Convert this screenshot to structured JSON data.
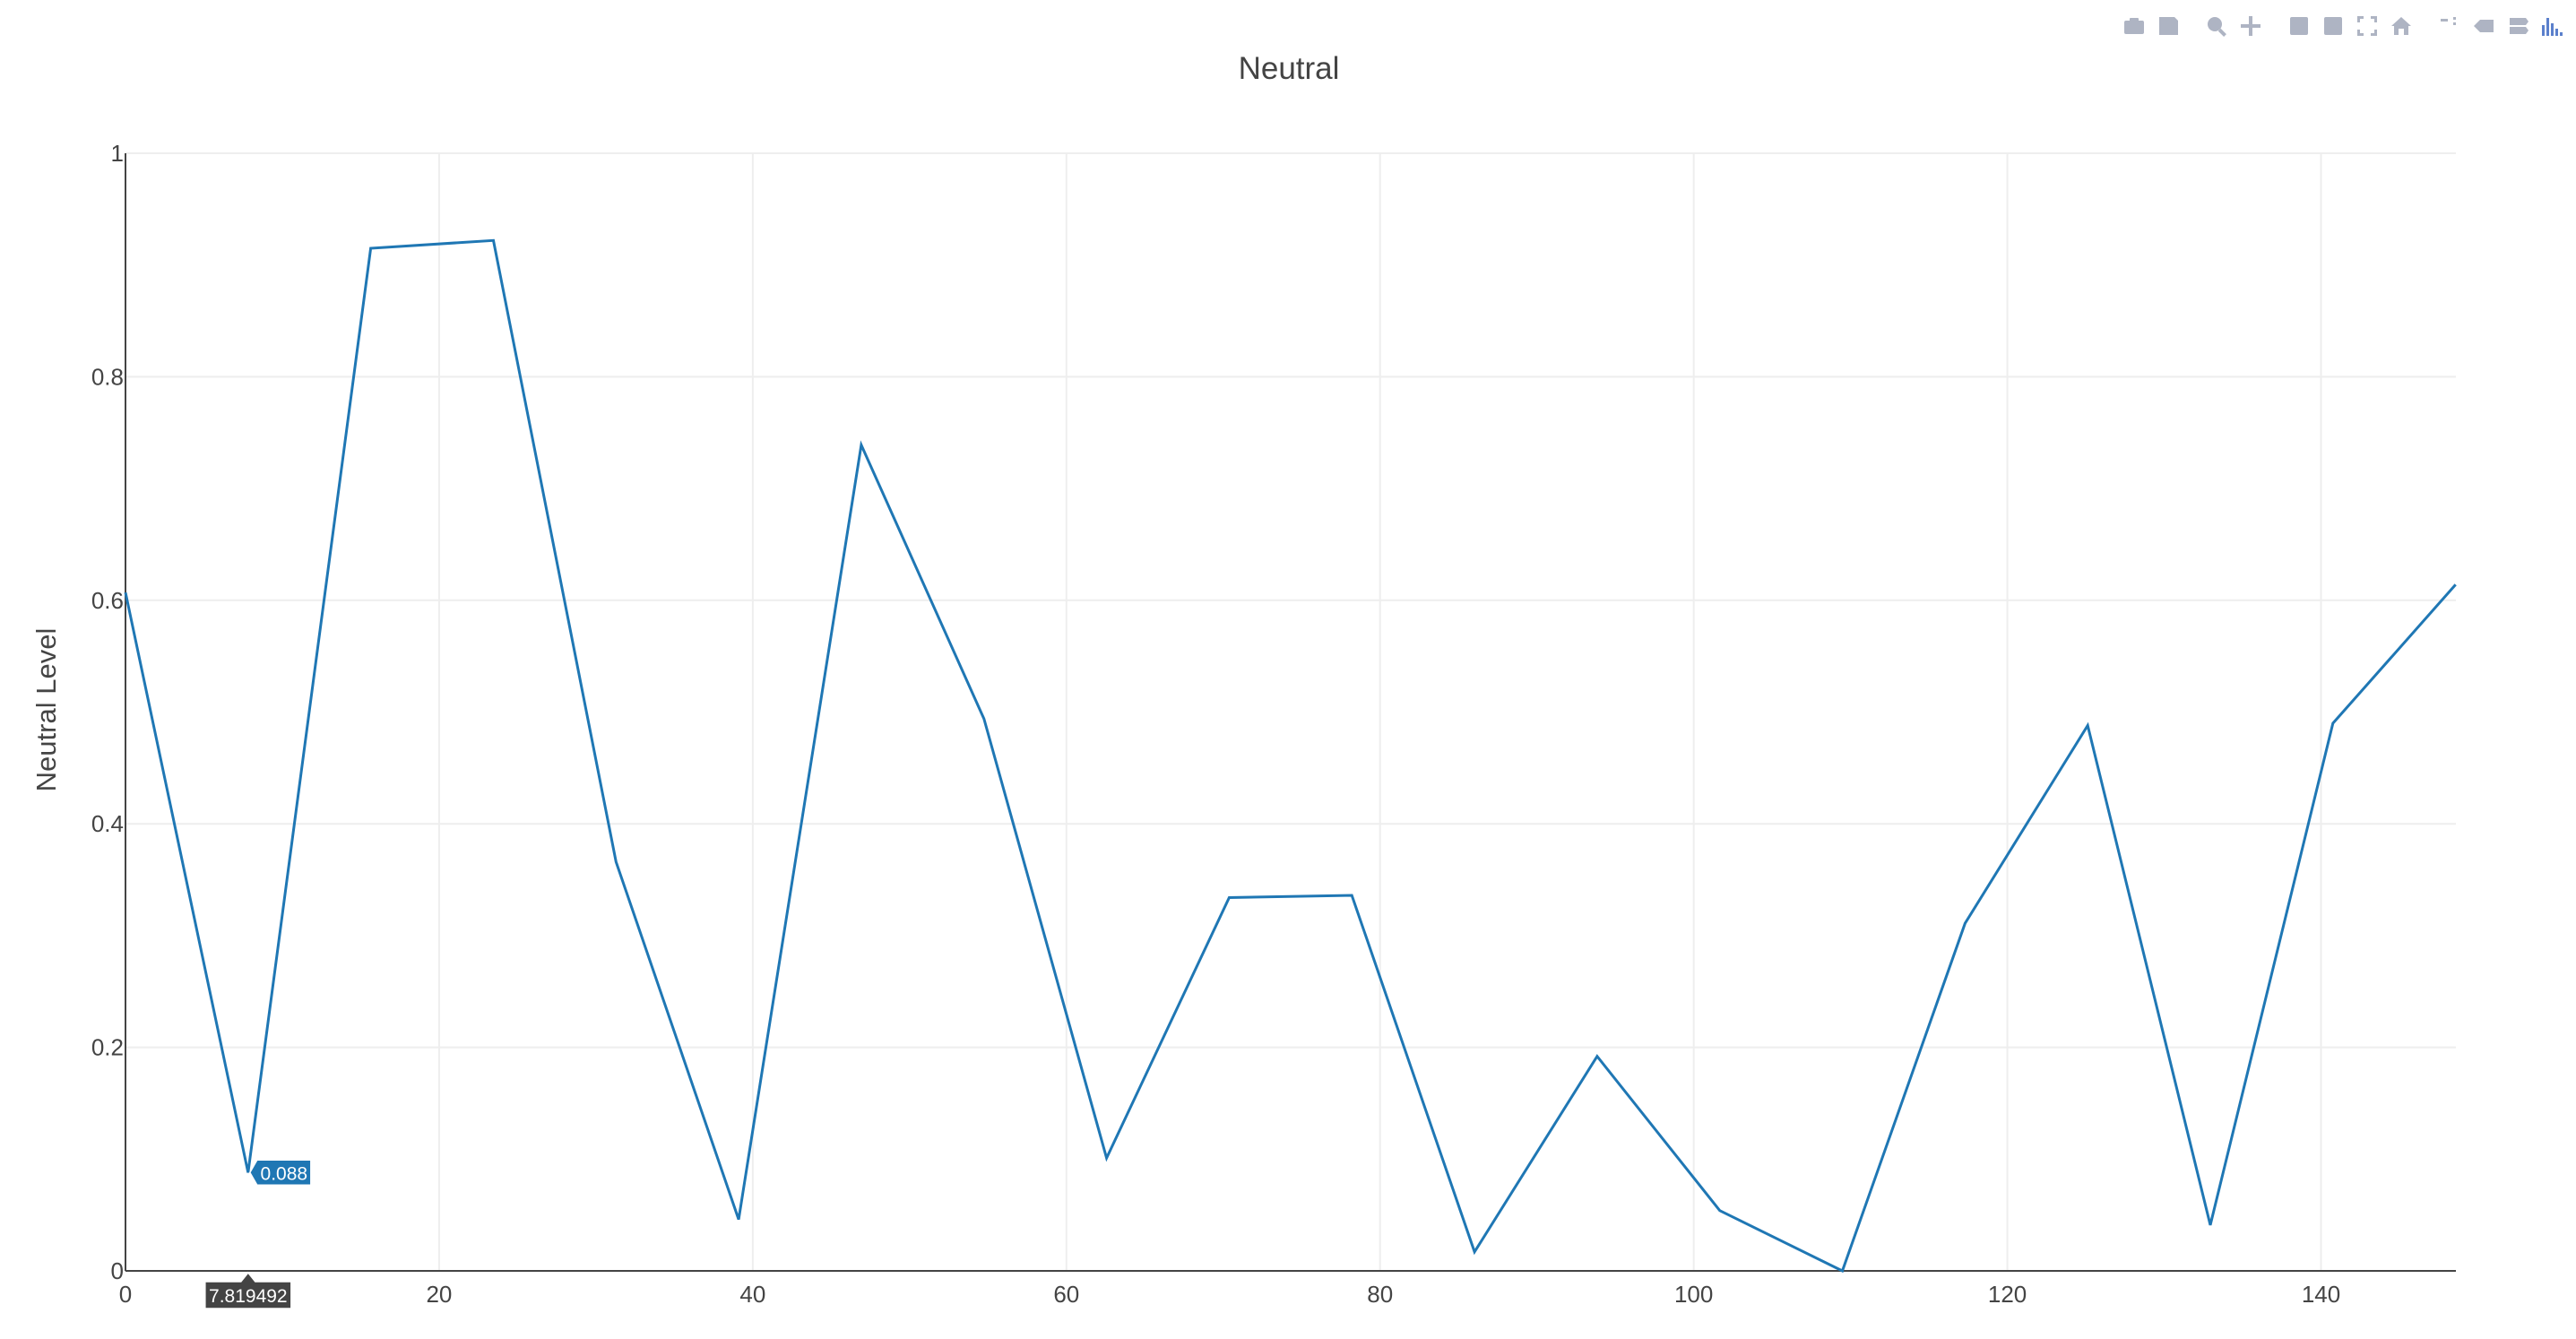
{
  "chart_data": {
    "type": "line",
    "title": "Neutral",
    "xlabel": "",
    "ylabel": "Neutral Level",
    "xlim": [
      0,
      148.6
    ],
    "ylim": [
      0,
      1
    ],
    "x_ticks": [
      0,
      20,
      40,
      60,
      80,
      100,
      120,
      140
    ],
    "y_ticks": [
      0,
      0.2,
      0.4,
      0.6,
      0.8,
      1
    ],
    "y_tick_labels": [
      "0",
      "0.2",
      "0.4",
      "0.6",
      "0.8",
      "1"
    ],
    "grid": true,
    "line_color": "#1f77b4",
    "series": [
      {
        "x": [
          0,
          7.82,
          15.64,
          23.46,
          31.28,
          39.1,
          46.92,
          54.74,
          62.56,
          70.38,
          78.2,
          86.02,
          93.84,
          101.66,
          109.48,
          117.3,
          125.12,
          132.94,
          140.76,
          148.58
        ],
        "values": [
          0.607,
          0.088,
          0.915,
          0.922,
          0.366,
          0.046,
          0.739,
          0.494,
          0.101,
          0.334,
          0.336,
          0.017,
          0.192,
          0.054,
          0.0,
          0.311,
          0.488,
          0.041,
          0.49,
          0.614
        ]
      }
    ],
    "hover": {
      "x_label": "7.819492",
      "y_label": "0.088",
      "x": 7.819492,
      "y": 0.088,
      "color": "#1f77b4",
      "x_label_bg": "#444444"
    }
  },
  "modebar": {
    "icons": [
      "camera-icon",
      "save-icon",
      "zoom-icon",
      "pan-icon",
      "zoom-in-icon",
      "zoom-out-icon",
      "autoscale-icon",
      "home-icon",
      "spike-lines-icon",
      "hover-closest-icon",
      "hover-compare-icon",
      "plotly-logo-icon"
    ]
  }
}
